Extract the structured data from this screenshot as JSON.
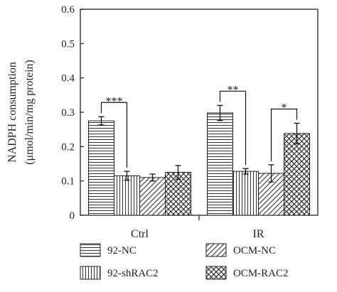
{
  "chart_data": {
    "type": "bar",
    "categories": [
      "Ctrl",
      "IR"
    ],
    "series": [
      {
        "name": "92-NC",
        "values": [
          0.275,
          0.298
        ],
        "errors": [
          0.012,
          0.022
        ],
        "pattern": "horizontal"
      },
      {
        "name": "92-shRAC2",
        "values": [
          0.115,
          0.128
        ],
        "errors": [
          0.013,
          0.008
        ],
        "pattern": "vertical"
      },
      {
        "name": "OCM-NC",
        "values": [
          0.11,
          0.122
        ],
        "errors": [
          0.01,
          0.025
        ],
        "pattern": "diagonal"
      },
      {
        "name": "OCM-RAC2",
        "values": [
          0.125,
          0.238
        ],
        "errors": [
          0.02,
          0.03
        ],
        "pattern": "crosshatch"
      }
    ],
    "title": "",
    "xlabel": "",
    "ylabel": "NADPH consumption",
    "ylabel_units": "(μmol/min/mg protein)",
    "ylim": [
      0,
      0.6
    ],
    "yticks": [
      "0",
      "0.1",
      "0.2",
      "0.3",
      "0.4",
      "0.5",
      "0.6"
    ],
    "ytick_values": [
      0,
      0.1,
      0.2,
      0.3,
      0.4,
      0.5,
      0.6
    ],
    "legend_placement": "bottom",
    "significance": [
      {
        "category": 0,
        "from_series": 0,
        "to_series": 1,
        "label": "***"
      },
      {
        "category": 1,
        "from_series": 0,
        "to_series": 1,
        "label": "**"
      },
      {
        "category": 1,
        "from_series": 2,
        "to_series": 3,
        "label": "*"
      }
    ]
  }
}
